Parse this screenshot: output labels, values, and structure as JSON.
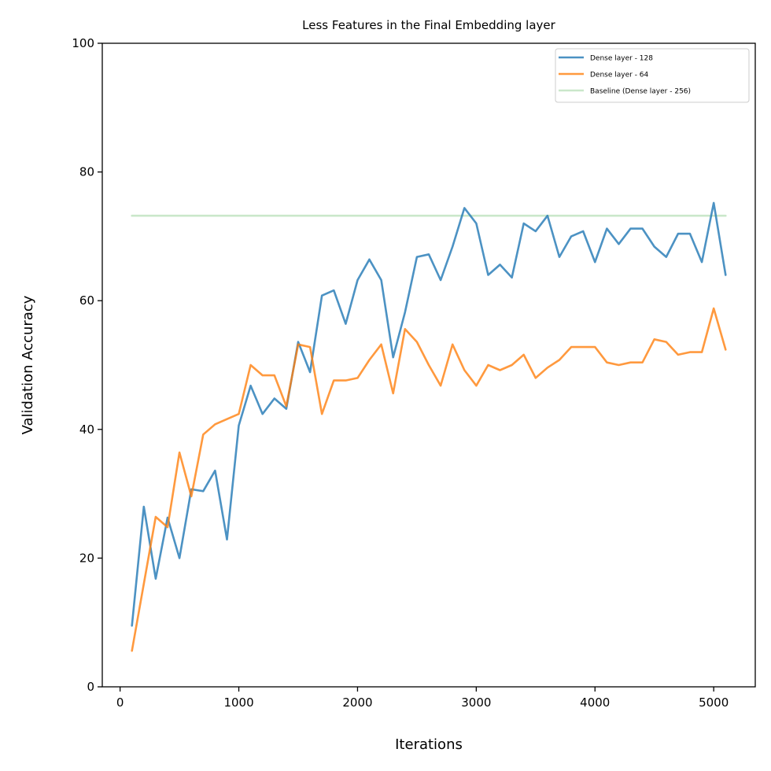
{
  "chart_data": {
    "type": "line",
    "title": "Less Features in the Final Embedding layer",
    "xlabel": "Iterations",
    "ylabel": "Validation Accuracy",
    "xlim": [
      -150,
      5350
    ],
    "ylim": [
      0,
      100
    ],
    "xticks": [
      "0",
      "1000",
      "2000",
      "3000",
      "4000",
      "5000"
    ],
    "yticks": [
      "0",
      "20",
      "40",
      "60",
      "80",
      "100"
    ],
    "grid": false,
    "legend_position": "top-right",
    "x": [
      100,
      200,
      300,
      400,
      500,
      600,
      700,
      800,
      900,
      1000,
      1100,
      1200,
      1300,
      1400,
      1500,
      1600,
      1700,
      1800,
      1900,
      2000,
      2100,
      2200,
      2300,
      2400,
      2500,
      2600,
      2700,
      2800,
      2900,
      3000,
      3100,
      3200,
      3300,
      3400,
      3500,
      3600,
      3700,
      3800,
      3900,
      4000,
      4100,
      4200,
      4300,
      4400,
      4500,
      4600,
      4700,
      4800,
      4900,
      5000,
      5100
    ],
    "series": [
      {
        "name": "Dense layer - 128",
        "color": "#1f77b4",
        "values": [
          9.5,
          28.0,
          16.8,
          26.3,
          20.0,
          30.7,
          30.4,
          33.6,
          22.9,
          40.6,
          46.8,
          42.4,
          44.8,
          43.2,
          53.6,
          48.9,
          60.8,
          61.6,
          56.4,
          63.2,
          66.4,
          63.2,
          51.2,
          58.2,
          66.8,
          67.2,
          63.2,
          68.4,
          74.4,
          72.0,
          64.0,
          65.6,
          63.6,
          72.0,
          70.8,
          73.2,
          66.8,
          70.0,
          70.8,
          66.0,
          71.2,
          68.8,
          71.2,
          71.2,
          68.4,
          66.8,
          70.4,
          70.4,
          66.0,
          75.2,
          64.0
        ]
      },
      {
        "name": "Dense layer - 64",
        "color": "#ff7f0e",
        "values": [
          5.6,
          16.0,
          26.4,
          24.8,
          36.4,
          29.6,
          39.2,
          40.8,
          41.6,
          42.4,
          50.0,
          48.4,
          48.4,
          43.6,
          53.2,
          52.8,
          42.4,
          47.6,
          47.6,
          48.0,
          50.8,
          53.2,
          45.6,
          55.6,
          53.6,
          50.0,
          46.8,
          53.2,
          49.2,
          46.8,
          50.0,
          49.2,
          50.0,
          51.6,
          48.0,
          49.6,
          50.8,
          52.8,
          52.8,
          52.8,
          50.4,
          50.0,
          50.4,
          50.4,
          54.0,
          53.6,
          51.6,
          52.0,
          52.0,
          58.8,
          52.4
        ]
      },
      {
        "name": "Baseline (Dense layer - 256)",
        "color": "#2ca02c",
        "values": [
          73.2,
          73.2,
          73.2,
          73.2,
          73.2,
          73.2,
          73.2,
          73.2,
          73.2,
          73.2,
          73.2,
          73.2,
          73.2,
          73.2,
          73.2,
          73.2,
          73.2,
          73.2,
          73.2,
          73.2,
          73.2,
          73.2,
          73.2,
          73.2,
          73.2,
          73.2,
          73.2,
          73.2,
          73.2,
          73.2,
          73.2,
          73.2,
          73.2,
          73.2,
          73.2,
          73.2,
          73.2,
          73.2,
          73.2,
          73.2,
          73.2,
          73.2,
          73.2,
          73.2,
          73.2,
          73.2,
          73.2,
          73.2,
          73.2,
          73.2,
          73.2
        ]
      }
    ]
  }
}
